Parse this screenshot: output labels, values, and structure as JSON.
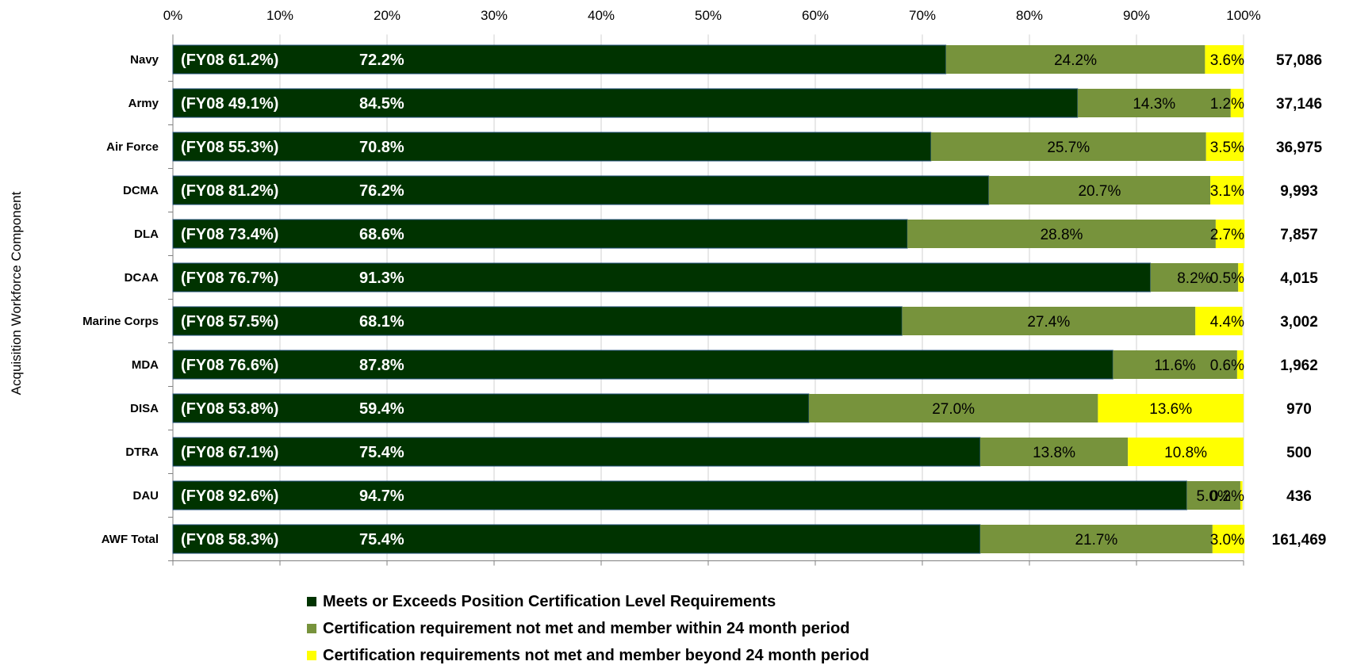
{
  "chart_data": {
    "type": "bar",
    "orientation": "horizontal",
    "stacked": "percent",
    "ylabel": "Acquisition Workforce Component",
    "x_ticks": [
      "0%",
      "10%",
      "20%",
      "30%",
      "40%",
      "50%",
      "60%",
      "70%",
      "80%",
      "90%",
      "100%"
    ],
    "xlim": [
      0,
      100
    ],
    "categories": [
      "Navy",
      "Army",
      "Air Force",
      "DCMA",
      "DLA",
      "DCAA",
      "Marine Corps",
      "MDA",
      "DISA",
      "DTRA",
      "DAU",
      "AWF Total"
    ],
    "fy08_labels": [
      "(FY08 61.2%)",
      "(FY08 49.1%)",
      "(FY08 55.3%)",
      "(FY08 81.2%)",
      "(FY08 73.4%)",
      "(FY08 76.7%)",
      "(FY08 57.5%)",
      "(FY08 76.6%)",
      "(FY08 53.8%)",
      "(FY08 67.1%)",
      "(FY08 92.6%)",
      "(FY08 58.3%)"
    ],
    "totals": [
      "57,086",
      "37,146",
      "36,975",
      "9,993",
      "7,857",
      "4,015",
      "3,002",
      "1,962",
      "970",
      "500",
      "436",
      "161,469"
    ],
    "series": [
      {
        "name": "Meets or Exceeds Position Certification Level Requirements",
        "color": "#003300",
        "values": [
          72.2,
          84.5,
          70.8,
          76.2,
          68.6,
          91.3,
          68.1,
          87.8,
          59.4,
          75.4,
          94.7,
          75.4
        ],
        "labels": [
          "72.2%",
          "84.5%",
          "70.8%",
          "76.2%",
          "68.6%",
          "91.3%",
          "68.1%",
          "87.8%",
          "59.4%",
          "75.4%",
          "94.7%",
          "75.4%"
        ]
      },
      {
        "name": "Certification requirement not met and member within 24 month period",
        "color": "#77933C",
        "values": [
          24.2,
          14.3,
          25.7,
          20.7,
          28.8,
          8.2,
          27.4,
          11.6,
          27.0,
          13.8,
          5.0,
          21.7
        ],
        "labels": [
          "24.2%",
          "14.3%",
          "25.7%",
          "20.7%",
          "28.8%",
          "8.2%",
          "27.4%",
          "11.6%",
          "27.0%",
          "13.8%",
          "5.0%",
          "21.7%"
        ]
      },
      {
        "name": "Certification requirements not met and member beyond 24 month period",
        "color": "#FFFF00",
        "values": [
          3.6,
          1.2,
          3.5,
          3.1,
          2.7,
          0.5,
          4.4,
          0.6,
          13.6,
          10.8,
          0.2,
          3.0
        ],
        "labels": [
          "3.6%",
          "1.2%",
          "3.5%",
          "3.1%",
          "2.7%",
          "0.5%",
          "4.4%",
          "0.6%",
          "13.6%",
          "10.8%",
          "0.2%",
          "3.0%"
        ]
      }
    ],
    "legend_position": "bottom"
  }
}
